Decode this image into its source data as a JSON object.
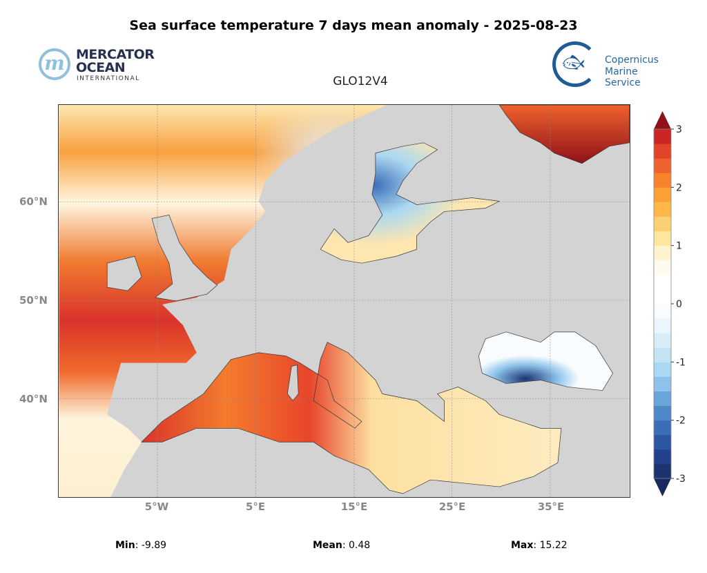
{
  "title": "Sea surface temperature 7 days mean anomaly - 2025-08-23",
  "subtitle": "GLO12V4",
  "logos": {
    "mercator": {
      "line1": "MERCATOR",
      "line2": "OCEAN",
      "line3": "INTERNATIONAL",
      "mark": "m"
    },
    "copernicus": {
      "line1": "Copernicus",
      "line2": "Marine Service",
      "icon": "fish-icon"
    }
  },
  "map": {
    "lat_labels": [
      "60°N",
      "50°N",
      "40°N"
    ],
    "lon_labels": [
      "5°W",
      "5°E",
      "15°E",
      "25°E",
      "35°E"
    ],
    "land_color": "#d3d3d3"
  },
  "colorbar": {
    "min": -3,
    "max": 3,
    "step": 0.25,
    "tick_labels": [
      "3",
      "2",
      "1",
      "0",
      "-1",
      "-2",
      "-3"
    ],
    "under_color": "#182a5e",
    "over_color": "#8e1219",
    "colors": [
      "#1c3370",
      "#23408a",
      "#2c55a2",
      "#3b6db8",
      "#4f88c8",
      "#6aa5da",
      "#8dc3ea",
      "#abd8f2",
      "#c4e4f4",
      "#d9edf8",
      "#ebf5fc",
      "#f8fcff",
      "#ffffff",
      "#ffffff",
      "#fffbee",
      "#fff3d0",
      "#fee79c",
      "#fdd173",
      "#fdb84a",
      "#fba036",
      "#f7832f",
      "#ef612d",
      "#e2432b",
      "#cc2528"
    ]
  },
  "stats": {
    "min_label": "Min",
    "min_value": ": -9.89",
    "mean_label": "Mean",
    "mean_value": ": 0.48",
    "max_label": "Max",
    "max_value": ": 15.22"
  }
}
